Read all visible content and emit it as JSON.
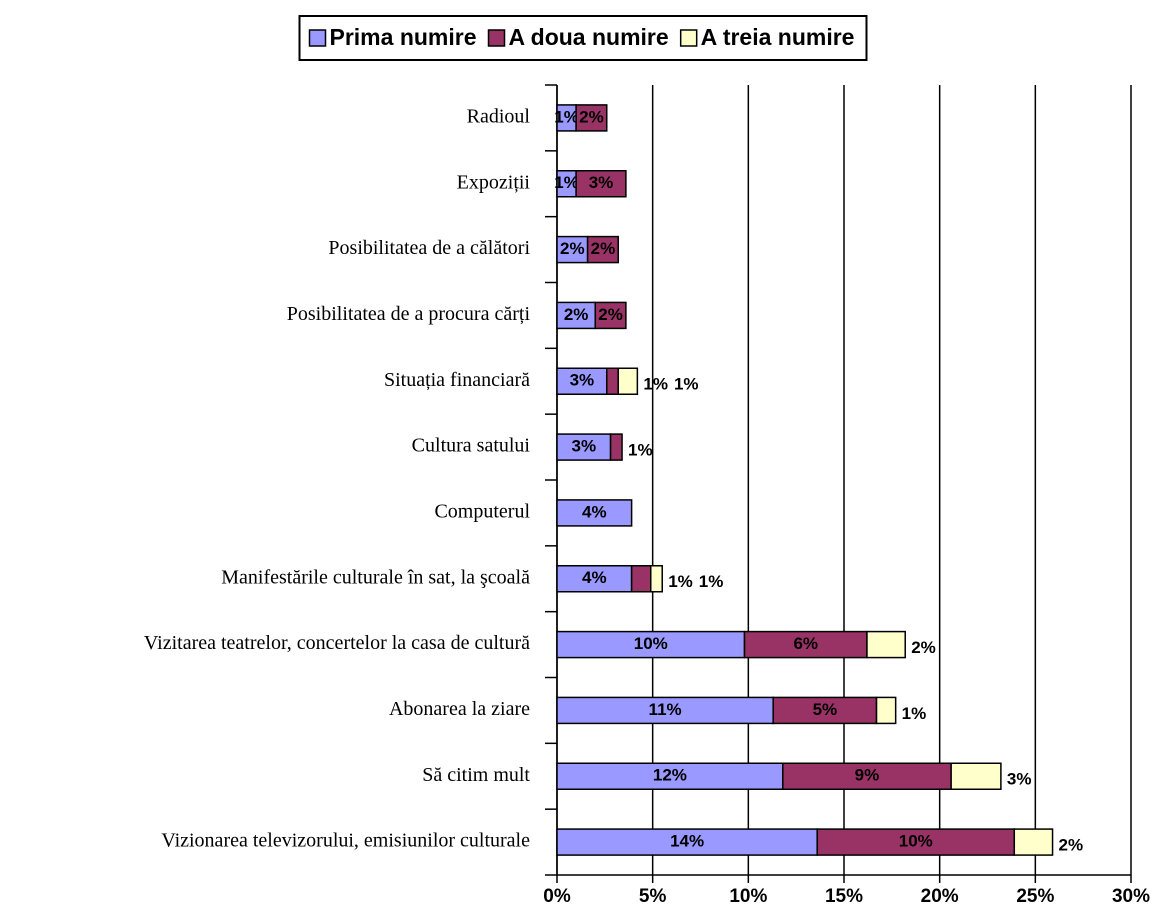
{
  "chart_data": {
    "type": "stacked-barh",
    "categories": [
      "Radioul",
      "Expoziții",
      "Posibilitatea de a călători",
      "Posibilitatea de a procura cărți",
      "Situația financiară",
      "Cultura satului",
      "Computerul",
      "Manifestările culturale în sat, la şcoală",
      "Vizitarea teatrelor, concertelor la casa de cultură",
      "Abonarea la ziare",
      "Să citim mult",
      "Vizionarea  televizorului, emisiunilor culturale"
    ],
    "series": [
      {
        "name": "Prima numire",
        "color": "#9999ff",
        "values": [
          1.0,
          1.0,
          1.6,
          2.0,
          2.6,
          2.8,
          3.9,
          3.9,
          9.8,
          11.3,
          11.8,
          13.6
        ],
        "value_labels": [
          "1%",
          "1%",
          "2%",
          "2%",
          "3%",
          "3%",
          "4%",
          "4%",
          "10%",
          "11%",
          "12%",
          "14%"
        ]
      },
      {
        "name": "A doua numire",
        "color": "#993366",
        "values": [
          1.6,
          2.6,
          1.6,
          1.6,
          0.6,
          0.6,
          null,
          1.0,
          6.4,
          5.4,
          8.8,
          10.3
        ],
        "value_labels": [
          "2%",
          "3%",
          "2%",
          "2%",
          "1%",
          "1%",
          null,
          "1%",
          "6%",
          "5%",
          "9%",
          "10%"
        ]
      },
      {
        "name": "A treia numire",
        "color": "#ffffcc",
        "values": [
          null,
          null,
          null,
          null,
          1.0,
          null,
          null,
          0.6,
          2.0,
          1.0,
          2.6,
          2.0
        ],
        "value_labels": [
          null,
          null,
          null,
          null,
          "1%",
          null,
          null,
          "1%",
          "2%",
          "1%",
          "3%",
          "2%"
        ]
      }
    ],
    "xlim": [
      0,
      30
    ],
    "xticks": [
      {
        "value": 0,
        "label": "0%"
      },
      {
        "value": 5,
        "label": "5%"
      },
      {
        "value": 10,
        "label": "10%"
      },
      {
        "value": 15,
        "label": "15%"
      },
      {
        "value": 20,
        "label": "20%"
      },
      {
        "value": 25,
        "label": "25%"
      },
      {
        "value": 30,
        "label": "30%"
      }
    ],
    "grid": true,
    "legend": "top"
  }
}
